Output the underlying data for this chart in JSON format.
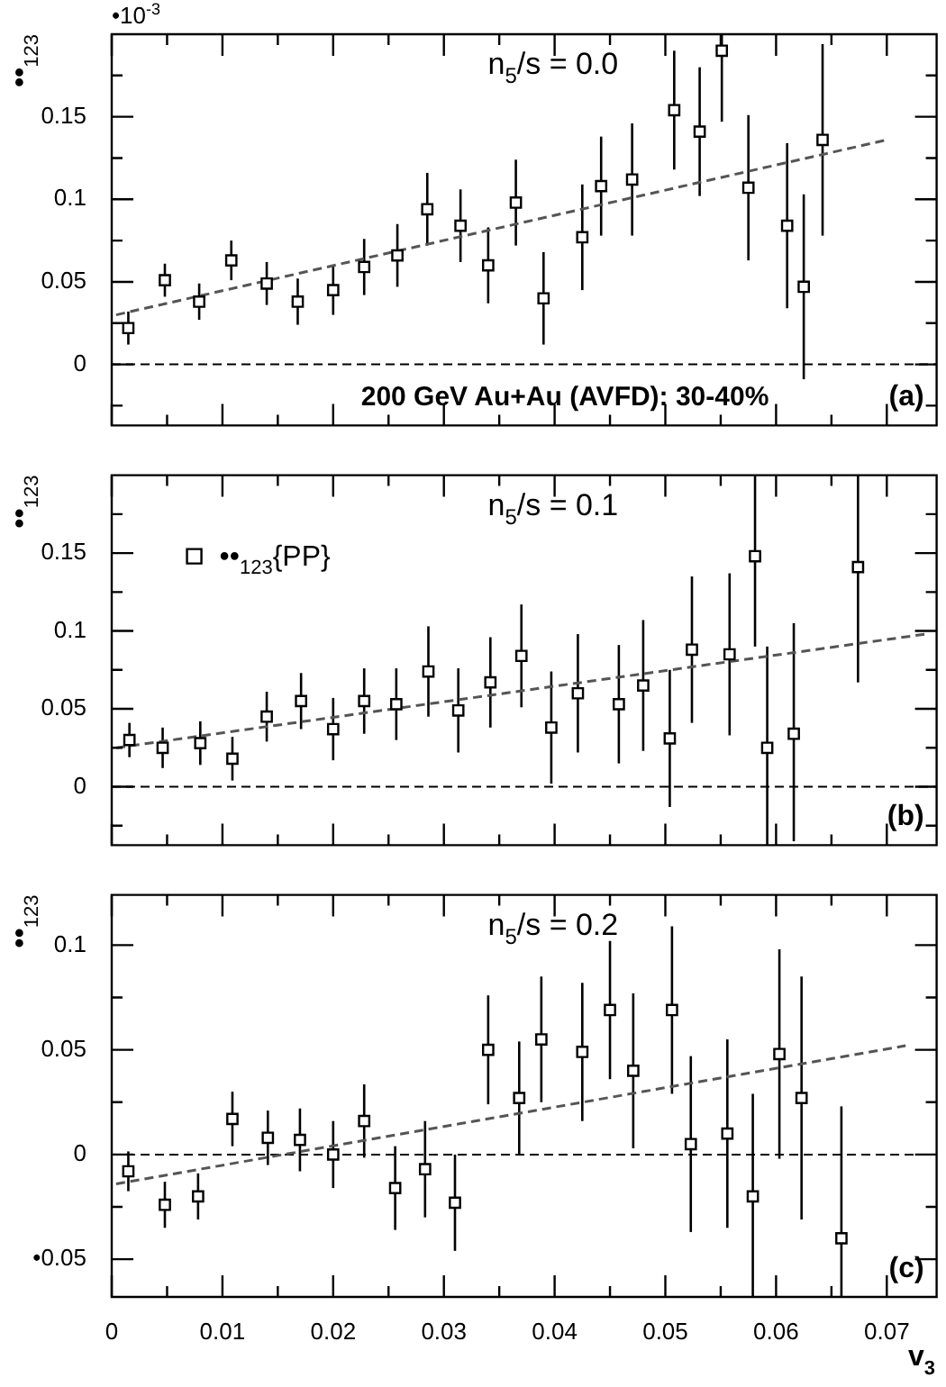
{
  "chart_data": [
    {
      "type": "scatter",
      "title": "n$_{5}$/s = 0.0",
      "ylabel": "••$_{123}$",
      "annotations": [
        "•10$^{-3}$",
        "200 GeV Au+Au (AVFD): 30-40%",
        "(a)"
      ],
      "xlim": [
        0,
        0.0745
      ],
      "ylim": [
        -0.037,
        0.2
      ],
      "tick_labels": "y",
      "xticks": [
        0,
        {
          "value": 0.005,
          "label": null
        },
        0.01,
        {
          "value": 0.015,
          "label": null
        },
        0.02,
        {
          "value": 0.025,
          "label": null
        },
        0.03,
        {
          "value": 0.035,
          "label": null
        },
        0.04,
        {
          "value": 0.045,
          "label": null
        },
        0.05,
        {
          "value": 0.055,
          "label": null
        },
        0.06,
        {
          "value": 0.065,
          "label": null
        },
        0.07
      ],
      "yticks": [
        {
          "value": -0.025,
          "label": null
        },
        0,
        {
          "value": 0.025,
          "label": null
        },
        0.05,
        {
          "value": 0.075,
          "label": null
        },
        0.1,
        {
          "value": 0.125,
          "label": null
        },
        0.15,
        {
          "value": 0.175,
          "label": null
        }
      ],
      "ref_lines": [
        {
          "axis": "y",
          "value": 0,
          "line_style": "dashed",
          "color": "#000000"
        }
      ],
      "series": [
        {
          "marker": "square",
          "color": "#000000",
          "x": [
            0.0015,
            0.0048,
            0.0079,
            0.0108,
            0.014,
            0.0168,
            0.02,
            0.0228,
            0.0258,
            0.0285,
            0.0315,
            0.034,
            0.0365,
            0.039,
            0.0425,
            0.0442,
            0.047,
            0.0508,
            0.0531,
            0.0551,
            0.0575,
            0.061,
            0.0625,
            0.0642
          ],
          "values": [
            0.022,
            0.051,
            0.038,
            0.063,
            0.049,
            0.038,
            0.045,
            0.059,
            0.066,
            0.094,
            0.084,
            0.06,
            0.098,
            0.04,
            0.077,
            0.108,
            0.112,
            0.154,
            0.141,
            0.19,
            0.107,
            0.084,
            0.047,
            0.136
          ],
          "errors": [
            0.01,
            0.01,
            0.011,
            0.012,
            0.013,
            0.014,
            0.015,
            0.017,
            0.019,
            0.022,
            0.022,
            0.023,
            0.026,
            0.028,
            0.032,
            0.03,
            0.034,
            0.036,
            0.039,
            [
              0.147,
              0.2
            ],
            0.044,
            0.05,
            0.056,
            0.058
          ]
        },
        {
          "type": "line",
          "marker": "none",
          "color": "#555555",
          "line_style": "dashed",
          "x": [
            0.0004,
            0.07
          ],
          "values": [
            0.03,
            0.136
          ]
        }
      ]
    },
    {
      "type": "scatter",
      "title": "n$_{5}$/s = 0.1",
      "ylabel": "••$_{123}$",
      "annotations": [
        "(b)"
      ],
      "legend": "top left",
      "xlim": [
        0,
        0.0745
      ],
      "ylim": [
        -0.0375,
        0.2
      ],
      "tick_labels": "y",
      "xticks": [
        0,
        {
          "value": 0.005,
          "label": null
        },
        0.01,
        {
          "value": 0.015,
          "label": null
        },
        0.02,
        {
          "value": 0.025,
          "label": null
        },
        0.03,
        {
          "value": 0.035,
          "label": null
        },
        0.04,
        {
          "value": 0.045,
          "label": null
        },
        0.05,
        {
          "value": 0.055,
          "label": null
        },
        0.06,
        {
          "value": 0.065,
          "label": null
        },
        0.07
      ],
      "yticks": [
        {
          "value": -0.025,
          "label": null
        },
        0,
        {
          "value": 0.025,
          "label": null
        },
        0.05,
        {
          "value": 0.075,
          "label": null
        },
        0.1,
        {
          "value": 0.125,
          "label": null
        },
        0.15,
        {
          "value": 0.175,
          "label": null
        }
      ],
      "ref_lines": [
        {
          "axis": "y",
          "value": 0,
          "line_style": "dashed",
          "color": "#000000"
        }
      ],
      "series": [
        {
          "marker": "square",
          "name": "••$_{123}${PP}",
          "color": "#000000",
          "x": [
            0.0016,
            0.0046,
            0.008,
            0.0109,
            0.014,
            0.0171,
            0.02,
            0.0228,
            0.0257,
            0.0286,
            0.0313,
            0.0342,
            0.037,
            0.0397,
            0.0421,
            0.0458,
            0.048,
            0.0504,
            0.0524,
            0.0558,
            0.0581,
            0.0592,
            0.0616,
            0.0674
          ],
          "values": [
            0.03,
            0.025,
            0.028,
            0.018,
            0.045,
            0.055,
            0.037,
            0.055,
            0.053,
            0.074,
            0.049,
            0.067,
            0.084,
            0.038,
            0.06,
            0.053,
            0.065,
            0.031,
            0.088,
            0.085,
            0.148,
            0.025,
            0.034,
            0.141
          ],
          "errors": [
            0.011,
            0.013,
            0.014,
            0.014,
            0.016,
            0.018,
            0.02,
            0.021,
            0.023,
            0.029,
            0.027,
            0.029,
            0.033,
            0.036,
            0.038,
            0.038,
            0.042,
            0.044,
            0.047,
            0.052,
            [
              0.09,
              0.2
            ],
            [
              -0.0375,
              0.09
            ],
            [
              -0.035,
              0.105
            ],
            [
              0.067,
              0.2
            ]
          ]
        },
        {
          "type": "line",
          "marker": "none",
          "color": "#555555",
          "line_style": "dashed",
          "x": [
            0.0004,
            0.0735
          ],
          "values": [
            0.025,
            0.098
          ]
        }
      ]
    },
    {
      "type": "scatter",
      "title": "n$_{5}$/s = 0.2",
      "ylabel": "••$_{123}$",
      "xlabel": "v$_{3}$",
      "annotations": [
        "(c)"
      ],
      "xlim": [
        0,
        0.0745
      ],
      "ylim": [
        -0.068,
        0.124
      ],
      "xticks": [
        0,
        {
          "value": 0.005,
          "label": null
        },
        0.01,
        {
          "value": 0.015,
          "label": null
        },
        0.02,
        {
          "value": 0.025,
          "label": null
        },
        0.03,
        {
          "value": 0.035,
          "label": null
        },
        0.04,
        {
          "value": 0.045,
          "label": null
        },
        0.05,
        {
          "value": 0.055,
          "label": null
        },
        0.06,
        {
          "value": 0.065,
          "label": null
        },
        0.07
      ],
      "yticks": [
        {
          "value": -0.05,
          "label": "•0.05"
        },
        {
          "value": -0.025,
          "label": null
        },
        0,
        {
          "value": 0.025,
          "label": null
        },
        0.05,
        {
          "value": 0.075,
          "label": null
        },
        0.1
      ],
      "ref_lines": [
        {
          "axis": "y",
          "value": 0,
          "line_style": "dashed",
          "color": "#000000"
        }
      ],
      "series": [
        {
          "marker": "square",
          "color": "#000000",
          "x": [
            0.0015,
            0.0048,
            0.0078,
            0.0109,
            0.0141,
            0.017,
            0.02,
            0.0228,
            0.0256,
            0.0283,
            0.031,
            0.034,
            0.0368,
            0.0388,
            0.0425,
            0.045,
            0.0471,
            0.0506,
            0.0523,
            0.0556,
            0.0579,
            0.0603,
            0.0623,
            0.0659
          ],
          "values": [
            -0.008,
            -0.024,
            -0.02,
            0.017,
            0.008,
            0.007,
            0,
            0.016,
            -0.016,
            -0.007,
            -0.023,
            0.05,
            0.027,
            0.055,
            0.049,
            0.069,
            0.04,
            0.069,
            0.005,
            0.01,
            -0.02,
            0.048,
            0.027,
            -0.04
          ],
          "errors": [
            0.0095,
            0.011,
            0.011,
            0.013,
            0.013,
            0.015,
            0.016,
            0.0175,
            0.02,
            0.023,
            0.023,
            0.026,
            0.027,
            0.03,
            0.033,
            0.033,
            0.037,
            0.04,
            0.042,
            0.045,
            [
              -0.068,
              0.029
            ],
            0.05,
            0.058,
            [
              -0.068,
              0.023
            ]
          ]
        },
        {
          "type": "line",
          "marker": "none",
          "color": "#555555",
          "line_style": "dashed",
          "x": [
            0.0004,
            0.0717
          ],
          "values": [
            -0.014,
            0.052
          ]
        }
      ]
    }
  ]
}
